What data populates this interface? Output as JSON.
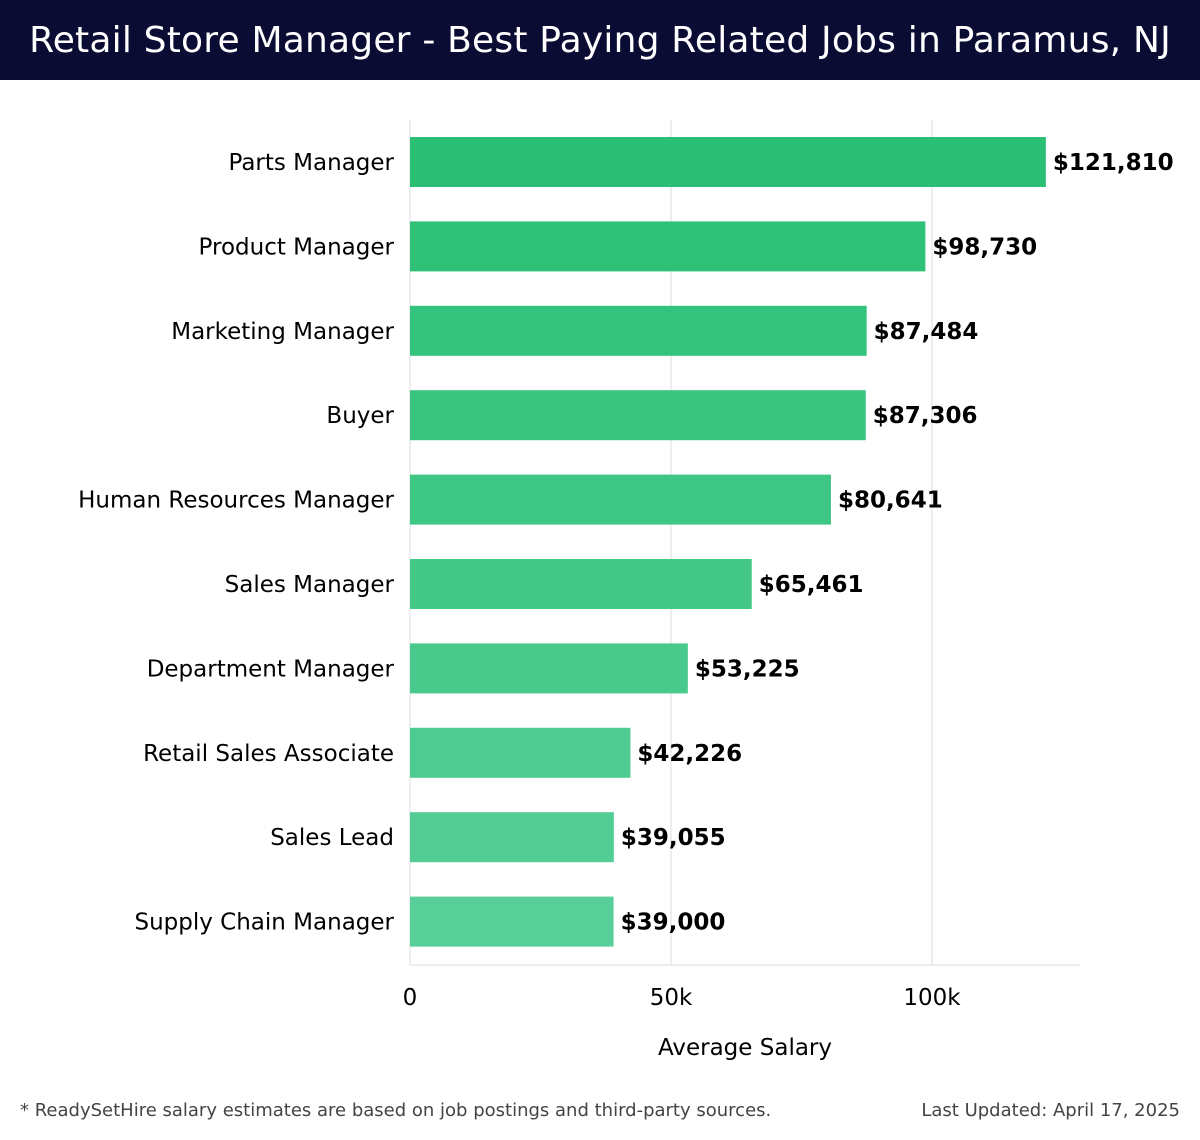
{
  "header": {
    "title": "Retail Store Manager - Best Paying Related Jobs in Paramus, NJ"
  },
  "footer": {
    "note": "* ReadySetHire salary estimates are based on job postings and third-party sources.",
    "last_updated": "Last Updated: April 17, 2025"
  },
  "colors": {
    "header_bg": "#0b0c33",
    "bar_top": "#2abf74",
    "bar_bottom": "#58cf98",
    "gridline": "#dddddd",
    "text": "#000000"
  },
  "chart_data": {
    "type": "bar",
    "orientation": "horizontal",
    "title": "",
    "xlabel": "Average Salary",
    "ylabel": "",
    "xlim": [
      0,
      128000
    ],
    "x_ticks": [
      {
        "value": 0,
        "label": "0"
      },
      {
        "value": 50000,
        "label": "50k"
      },
      {
        "value": 100000,
        "label": "100k"
      }
    ],
    "grid": true,
    "categories": [
      "Parts Manager",
      "Product Manager",
      "Marketing Manager",
      "Buyer",
      "Human Resources Manager",
      "Sales Manager",
      "Department Manager",
      "Retail Sales Associate",
      "Sales Lead",
      "Supply Chain Manager"
    ],
    "values": [
      121810,
      98730,
      87484,
      87306,
      80641,
      65461,
      53225,
      42226,
      39055,
      39000
    ],
    "value_labels": [
      "$121,810",
      "$98,730",
      "$87,484",
      "$87,306",
      "$80,641",
      "$65,461",
      "$53,225",
      "$42,226",
      "$39,055",
      "$39,000"
    ]
  }
}
